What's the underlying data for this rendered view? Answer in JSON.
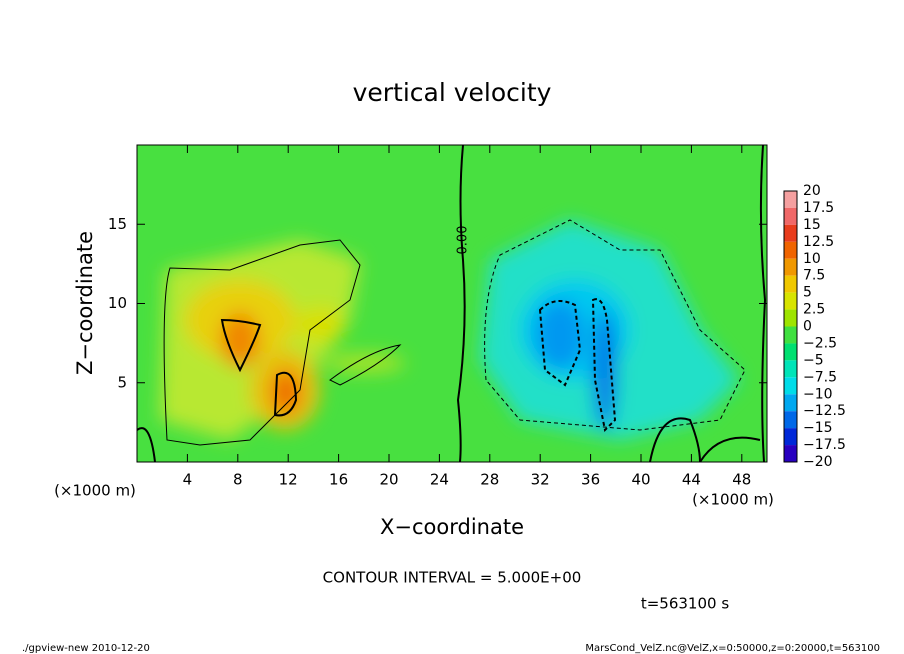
{
  "chart_data": {
    "type": "contour",
    "title": "vertical velocity",
    "xlabel": "X−coordinate",
    "ylabel": "Z−coordinate",
    "xunit": "(×1000 m)",
    "xunit2": "(×1000 m)",
    "xlim": [
      0,
      50
    ],
    "xticks": [
      4,
      8,
      12,
      16,
      20,
      24,
      28,
      32,
      36,
      40,
      44,
      48
    ],
    "ylim": [
      0,
      20
    ],
    "yticks": [
      5,
      10,
      15
    ],
    "contour_label": "0.00",
    "contour_interval": "CONTOUR INTERVAL = 5.000E+00",
    "time_label": "t=563100 s",
    "footer_left": "./gpview-new  2010-12-20",
    "footer_right": "MarsCond_VelZ.nc@VelZ,x=0:50000,z=0:20000,t=563100",
    "levels": [
      20,
      17.5,
      15,
      12.5,
      10,
      7.5,
      5,
      2.5,
      0,
      {
        "value": -2.5,
        "label": "−2.5"
      },
      {
        "value": -5,
        "label": "−5"
      },
      {
        "value": -7.5,
        "label": "−7.5"
      },
      {
        "value": -10,
        "label": "−10"
      },
      {
        "value": -12.5,
        "label": "−12.5"
      },
      {
        "value": -15,
        "label": "−15"
      },
      {
        "value": -17.5,
        "label": "−17.5"
      },
      {
        "value": -20,
        "label": "−20"
      }
    ],
    "colors": [
      "#f5a0a0",
      "#f06868",
      "#e83c1c",
      "#f06400",
      "#f09800",
      "#f0c800",
      "#d8e400",
      "#9ee400",
      "#40e040",
      "#00e070",
      "#00e4b8",
      "#00dce8",
      "#00a8f0",
      "#0068e8",
      "#0028d8",
      "#2800c0",
      "#6000b8"
    ]
  }
}
